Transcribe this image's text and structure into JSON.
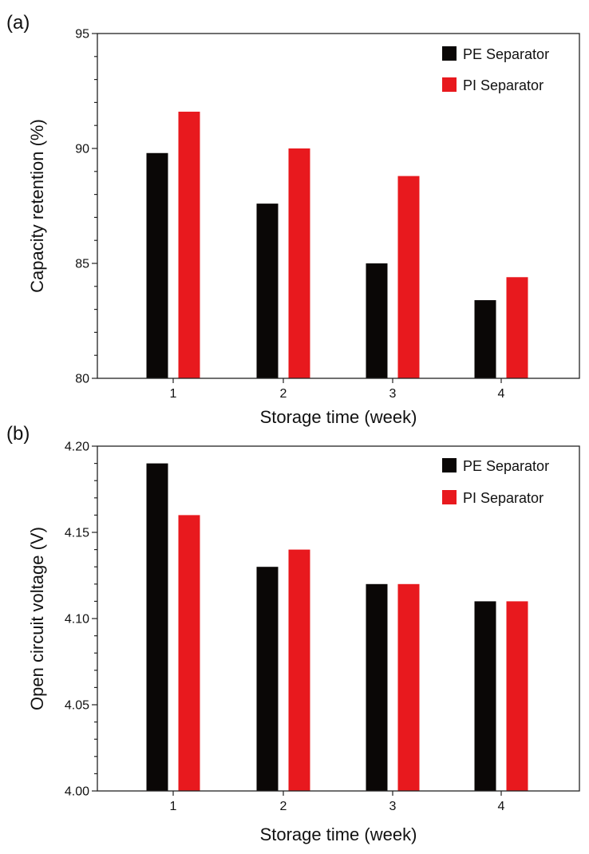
{
  "chart_data": [
    {
      "panel_label": "(a)",
      "type": "bar",
      "categories": [
        "1",
        "2",
        "3",
        "4"
      ],
      "series": [
        {
          "name": "PE Separator",
          "color": "#0a0706",
          "values": [
            89.8,
            87.6,
            85.0,
            83.4
          ]
        },
        {
          "name": "PI Separator",
          "color": "#e8191e",
          "values": [
            91.6,
            90.0,
            88.8,
            84.4
          ]
        }
      ],
      "title": "",
      "xlabel": "Storage time (week)",
      "ylabel": "Capacity retention (%)",
      "ylim": [
        80,
        95
      ],
      "yticks": [
        80,
        85,
        90,
        95
      ],
      "ytick_labels": [
        "80",
        "85",
        "90",
        "95"
      ],
      "minor_yticks_per_major": 4,
      "legend_position": "top-right",
      "grid": false
    },
    {
      "panel_label": "(b)",
      "type": "bar",
      "categories": [
        "1",
        "2",
        "3",
        "4"
      ],
      "series": [
        {
          "name": "PE Separator",
          "color": "#0a0706",
          "values": [
            4.19,
            4.13,
            4.12,
            4.11
          ]
        },
        {
          "name": "PI Separator",
          "color": "#e8191e",
          "values": [
            4.16,
            4.14,
            4.12,
            4.11
          ]
        }
      ],
      "title": "",
      "xlabel": "Storage time (week)",
      "ylabel": "Open circuit voltage (V)",
      "ylim": [
        4.0,
        4.2
      ],
      "yticks": [
        4.0,
        4.05,
        4.1,
        4.15,
        4.2
      ],
      "ytick_labels": [
        "4.00",
        "4.05",
        "4.10",
        "4.15",
        "4.20"
      ],
      "minor_yticks_per_major": 4,
      "legend_position": "top-right",
      "grid": false
    }
  ]
}
